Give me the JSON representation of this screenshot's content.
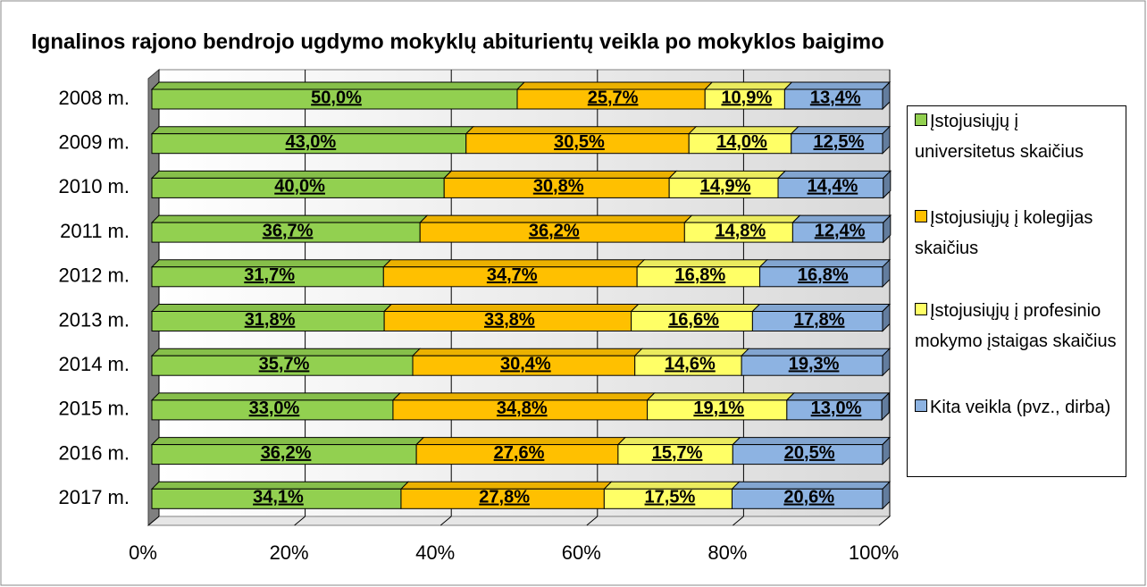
{
  "chart_data": {
    "type": "stacked_bar_horizontal_3d",
    "title": "Ignalinos rajono bendrojo ugdymo mokyklų abiturientų veikla po mokyklos baigimo",
    "categories": [
      "2008 m.",
      "2009 m.",
      "2010 m.",
      "2011 m.",
      "2012 m.",
      "2013 m.",
      "2014 m.",
      "2015 m.",
      "2016 m.",
      "2017 m."
    ],
    "series": [
      {
        "name": "Įstojusiųjų į universitetus skaičius",
        "color": "#92d050",
        "values": [
          50.0,
          43.0,
          40.0,
          36.7,
          31.7,
          31.8,
          35.7,
          33.0,
          36.2,
          34.1
        ],
        "value_labels": [
          "50,0%",
          "43,0%",
          "40,0%",
          "36,7%",
          "31,7%",
          "31,8%",
          "35,7%",
          "33,0%",
          "36,2%",
          "34,1%"
        ]
      },
      {
        "name": "Įstojusiųjų į kolegijas skaičius",
        "color": "#ffc000",
        "values": [
          25.7,
          30.5,
          30.8,
          36.2,
          34.7,
          33.8,
          30.4,
          34.8,
          27.6,
          27.8
        ],
        "value_labels": [
          "25,7%",
          "30,5%",
          "30,8%",
          "36,2%",
          "34,7%",
          "33,8%",
          "30,4%",
          "34,8%",
          "27,6%",
          "27,8%"
        ]
      },
      {
        "name": "Įstojusiųjų į profesinio mokymo įstaigas skaičius",
        "color": "#ffff66",
        "values": [
          10.9,
          14.0,
          14.9,
          14.8,
          16.8,
          16.6,
          14.6,
          19.1,
          15.7,
          17.5
        ],
        "value_labels": [
          "10,9%",
          "14,0%",
          "14,9%",
          "14,8%",
          "16,8%",
          "16,6%",
          "14,6%",
          "19,1%",
          "15,7%",
          "17,5%"
        ]
      },
      {
        "name": "Kita veikla  (pvz., dirba)",
        "color": "#8db3e2",
        "values": [
          13.4,
          12.5,
          14.4,
          12.4,
          16.8,
          17.8,
          19.3,
          13.0,
          20.5,
          20.6
        ],
        "value_labels": [
          "13,4%",
          "12,5%",
          "14,4%",
          "12,4%",
          "16,8%",
          "17,8%",
          "19,3%",
          "13,0%",
          "20,5%",
          "20,6%"
        ]
      }
    ],
    "xlim": [
      0,
      100
    ],
    "xticks": [
      {
        "value": 0,
        "label": "0%"
      },
      {
        "value": 20,
        "label": "20%"
      },
      {
        "value": 40,
        "label": "40%"
      },
      {
        "value": 60,
        "label": "60%"
      },
      {
        "value": 80,
        "label": "80%"
      },
      {
        "value": 100,
        "label": "100%"
      }
    ],
    "grid": true,
    "legend": "right"
  }
}
